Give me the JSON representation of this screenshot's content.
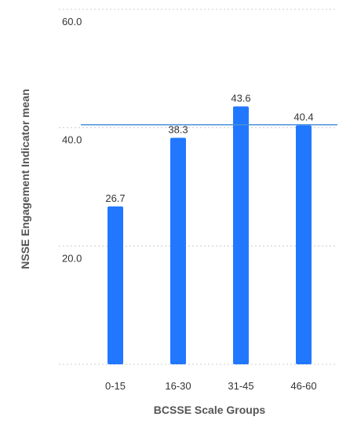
{
  "chart_data": {
    "type": "bar",
    "title": "",
    "xlabel": "BCSSE Scale Groups",
    "ylabel": "NSSE Engagement Indicator mean",
    "categories": [
      "0-15",
      "16-30",
      "31-45",
      "46-60"
    ],
    "values": [
      26.7,
      38.3,
      43.6,
      40.4
    ],
    "value_labels": [
      "26.7",
      "38.3",
      "43.6",
      "40.4"
    ],
    "ylim": [
      0,
      60
    ],
    "yticks": [
      20,
      40,
      60
    ],
    "ytick_labels": [
      "20.0",
      "40.0",
      "60.0"
    ],
    "reference_line": 40.5,
    "grid": true,
    "colors": {
      "bar": "#2277ff",
      "reference_line": "#4a90d9",
      "grid": "#cccccc",
      "tick_text": "#333333",
      "axis_title": "#555555"
    }
  }
}
